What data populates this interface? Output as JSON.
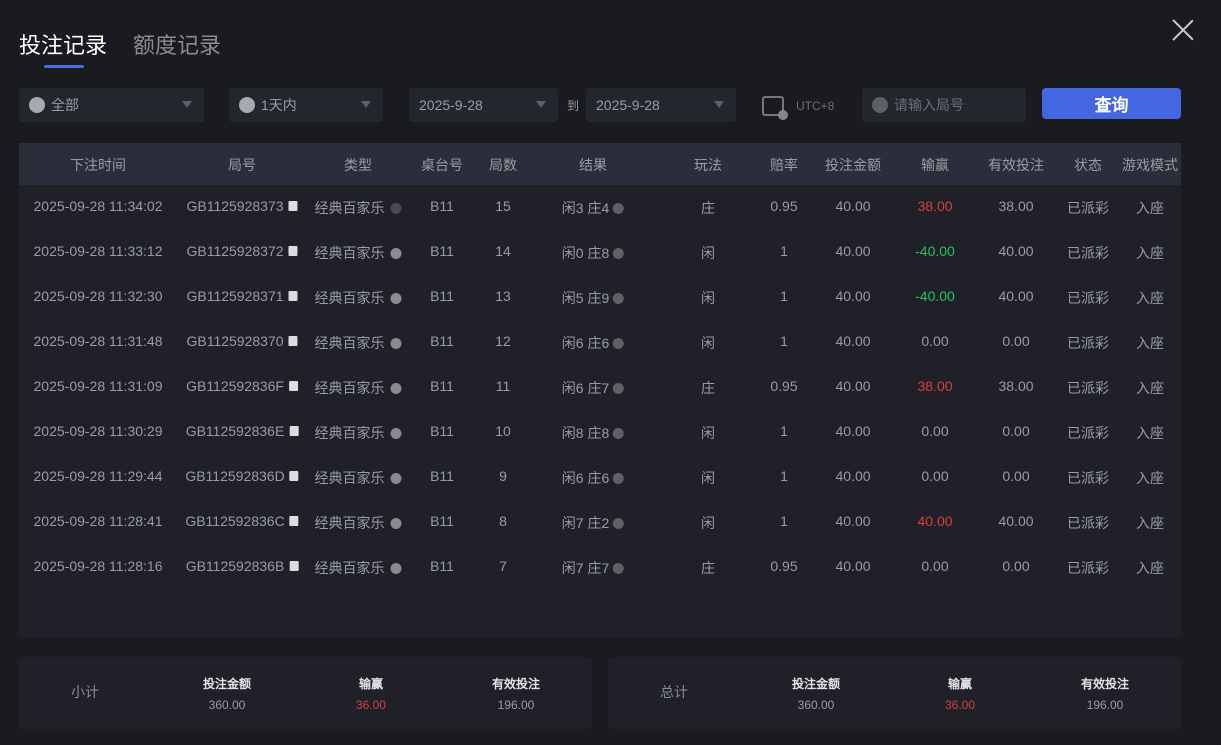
{
  "tabs": [
    {
      "label": "投注记录",
      "active": true
    },
    {
      "label": "额度记录",
      "active": false
    }
  ],
  "filters": {
    "game": "全部",
    "period": "1天内",
    "date_from": "2025-9-28",
    "to_label": "到",
    "date_to": "2025-9-28",
    "timezone": "UTC+8",
    "round_placeholder": "请输入局号",
    "query_button": "查询"
  },
  "accent_color": "#4466e0",
  "table": {
    "headers": [
      "下注时间",
      "局号",
      "类型",
      "桌台号",
      "局数",
      "结果",
      "玩法",
      "赔率",
      "投注金额",
      "输赢",
      "有效投注",
      "状态",
      "游戏模式"
    ],
    "rows": [
      [
        "2025-09-28 11:34:02",
        "GB1125928373",
        "经典百家乐",
        "B11",
        "15",
        "闲3 庄4",
        "庄",
        "0.95",
        "40.00",
        "38.00",
        "38.00",
        "已派彩",
        "入座"
      ],
      [
        "2025-09-28 11:33:12",
        "GB1125928372",
        "经典百家乐",
        "B11",
        "14",
        "闲0 庄8",
        "闲",
        "1",
        "40.00",
        "-40.00",
        "40.00",
        "已派彩",
        "入座"
      ],
      [
        "2025-09-28 11:32:30",
        "GB1125928371",
        "经典百家乐",
        "B11",
        "13",
        "闲5 庄9",
        "闲",
        "1",
        "40.00",
        "-40.00",
        "40.00",
        "已派彩",
        "入座"
      ],
      [
        "2025-09-28 11:31:48",
        "GB1125928370",
        "经典百家乐",
        "B11",
        "12",
        "闲6 庄6",
        "闲",
        "1",
        "40.00",
        "0.00",
        "0.00",
        "已派彩",
        "入座"
      ],
      [
        "2025-09-28 11:31:09",
        "GB112592836F",
        "经典百家乐",
        "B11",
        "11",
        "闲6 庄7",
        "庄",
        "0.95",
        "40.00",
        "38.00",
        "38.00",
        "已派彩",
        "入座"
      ],
      [
        "2025-09-28 11:30:29",
        "GB112592836E",
        "经典百家乐",
        "B11",
        "10",
        "闲8 庄8",
        "闲",
        "1",
        "40.00",
        "0.00",
        "0.00",
        "已派彩",
        "入座"
      ],
      [
        "2025-09-28 11:29:44",
        "GB112592836D",
        "经典百家乐",
        "B11",
        "9",
        "闲6 庄6",
        "闲",
        "1",
        "40.00",
        "0.00",
        "0.00",
        "已派彩",
        "入座"
      ],
      [
        "2025-09-28 11:28:41",
        "GB112592836C",
        "经典百家乐",
        "B11",
        "8",
        "闲7 庄2",
        "闲",
        "1",
        "40.00",
        "40.00",
        "40.00",
        "已派彩",
        "入座"
      ],
      [
        "2025-09-28 11:28:16",
        "GB112592836B",
        "经典百家乐",
        "B11",
        "7",
        "闲7 庄7",
        "庄",
        "0.95",
        "40.00",
        "0.00",
        "0.00",
        "已派彩",
        "入座"
      ]
    ]
  },
  "subtotal": {
    "label": "小计",
    "bet_label": "投注金额",
    "bet": "360.00",
    "win_label": "输赢",
    "win": "36.00",
    "valid_label": "有效投注",
    "valid": "196.00"
  },
  "total": {
    "label": "总计",
    "bet_label": "投注金额",
    "bet": "360.00",
    "win_label": "输赢",
    "win": "36.00",
    "valid_label": "有效投注",
    "valid": "196.00"
  }
}
